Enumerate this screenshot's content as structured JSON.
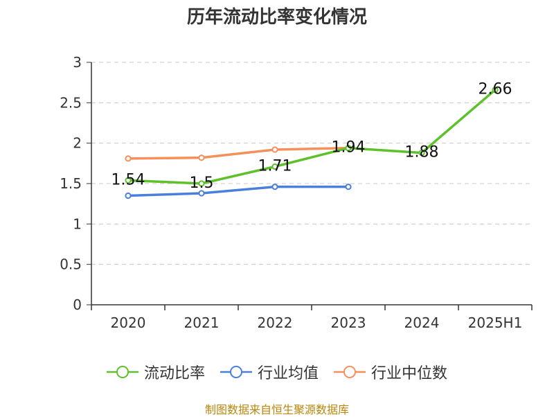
{
  "title": "历年流动比率变化情况",
  "source": "制图数据来自恒生聚源数据库",
  "chart_data": {
    "type": "line",
    "title": "历年流动比率变化情况",
    "categories": [
      "2020",
      "2021",
      "2022",
      "2023",
      "2024",
      "2025H1"
    ],
    "ylim": [
      0,
      3
    ],
    "yticks": [
      "0",
      "0.5",
      "1",
      "1.5",
      "2",
      "2.5",
      "3"
    ],
    "grid": true,
    "legend_position": "bottom",
    "series": [
      {
        "name": "流动比率",
        "color": "#5ec12c",
        "values": [
          1.54,
          1.5,
          1.71,
          1.94,
          1.88,
          2.66
        ],
        "labels": [
          "1.54",
          "1.5",
          "1.71",
          "1.94",
          "1.88",
          "2.66"
        ]
      },
      {
        "name": "行业均值",
        "color": "#4a7fdc",
        "values": [
          1.35,
          1.38,
          1.46,
          1.46,
          null,
          null
        ]
      },
      {
        "name": "行业中位数",
        "color": "#f5905a",
        "values": [
          1.81,
          1.82,
          1.92,
          1.94,
          null,
          null
        ]
      }
    ]
  }
}
